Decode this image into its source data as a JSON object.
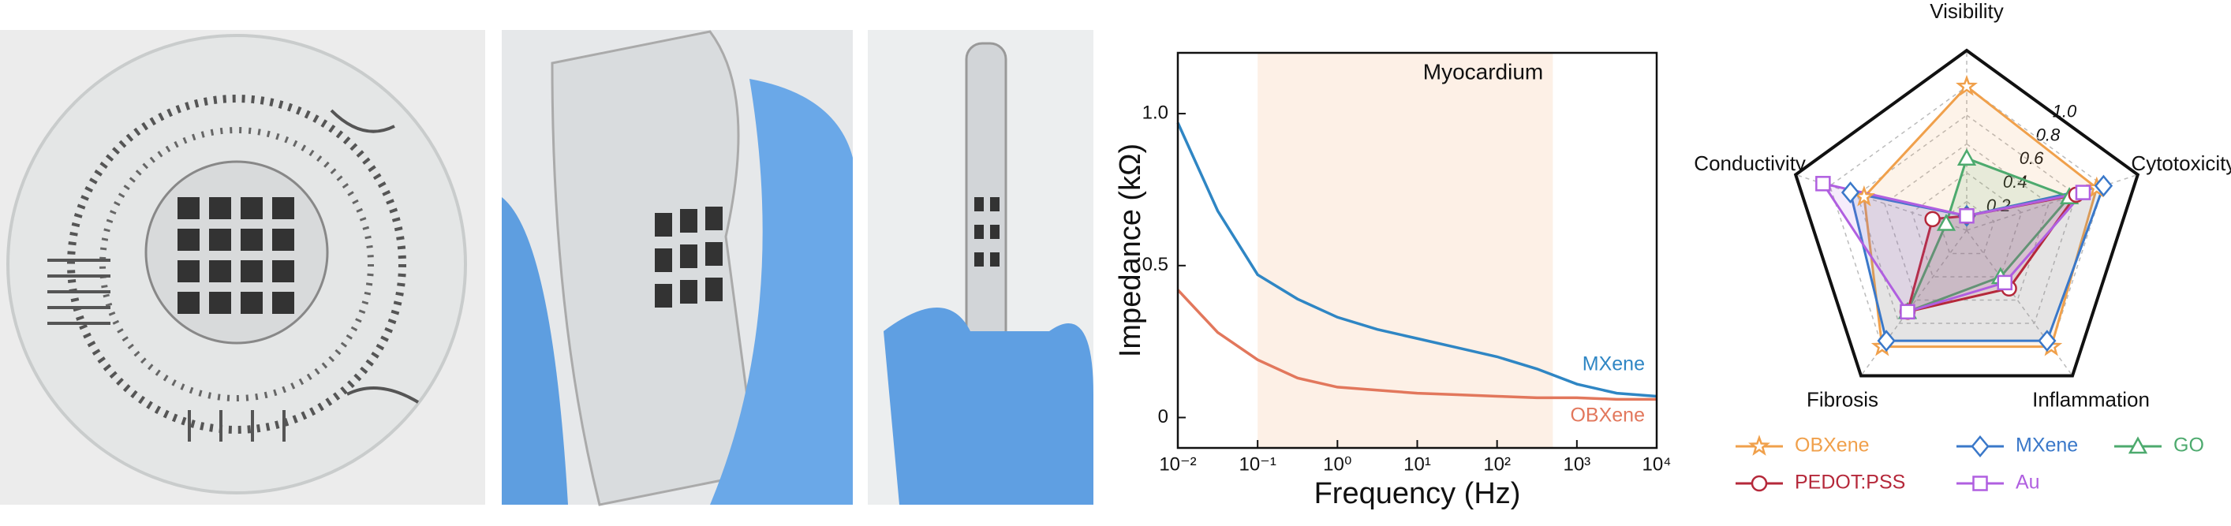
{
  "chart_data": [
    {
      "type": "line",
      "xscale": "log",
      "annotation": "Myocardium",
      "xlabel": "Frequency (Hz)",
      "ylabel": "Impedance (kΩ)",
      "shaded_range": [
        0.1,
        500
      ],
      "shade_color": "#fdf0e6",
      "x": [
        0.01,
        0.0316,
        0.1,
        0.316,
        1,
        3.16,
        10,
        31.6,
        100,
        316,
        1000,
        3162,
        10000
      ],
      "series": [
        {
          "name": "MXene",
          "color": "#2f86c4",
          "values": [
            0.97,
            0.68,
            0.47,
            0.39,
            0.33,
            0.29,
            0.26,
            0.23,
            0.2,
            0.16,
            0.11,
            0.08,
            0.07
          ]
        },
        {
          "name": "OBXene",
          "color": "#e2775c",
          "values": [
            0.42,
            0.28,
            0.19,
            0.13,
            0.1,
            0.09,
            0.08,
            0.075,
            0.07,
            0.065,
            0.065,
            0.06,
            0.06
          ]
        }
      ],
      "xlim": [
        0.01,
        10000
      ],
      "xticks": [
        {
          "value": 0.01,
          "label": "10⁻²"
        },
        {
          "value": 0.1,
          "label": "10⁻¹"
        },
        {
          "value": 1,
          "label": "10⁰"
        },
        {
          "value": 10,
          "label": "10¹"
        },
        {
          "value": 100,
          "label": "10²"
        },
        {
          "value": 1000,
          "label": "10³"
        },
        {
          "value": 10000,
          "label": "10⁴"
        }
      ],
      "ylim": [
        -0.1,
        1.2
      ],
      "yticks": [
        0,
        0.5,
        {
          "value": 1,
          "label": "1.0"
        }
      ]
    },
    {
      "type": "radar",
      "categories": [
        "Visibility",
        "Cytotoxicity",
        "Inflammation",
        "Fibrosis",
        "Conductivity"
      ],
      "rlim": [
        0,
        1.25
      ],
      "rticks": [
        0.2,
        0.4,
        0.6,
        0.8,
        {
          "value": 1,
          "label": "1.0"
        }
      ],
      "series": [
        {
          "name": "OBXene",
          "color": "#f0a04b",
          "marker": "star",
          "values": [
            1.0,
            0.95,
            1.0,
            1.0,
            0.75
          ]
        },
        {
          "name": "MXene",
          "color": "#3a78c9",
          "marker": "diamond",
          "values": [
            0.1,
            1.0,
            0.95,
            0.95,
            0.85
          ]
        },
        {
          "name": "GO",
          "color": "#4daa6e",
          "marker": "triangle",
          "values": [
            0.5,
            0.75,
            0.4,
            0.7,
            0.15
          ]
        },
        {
          "name": "PEDOT:PSS",
          "color": "#b5283a",
          "marker": "circle",
          "values": [
            0.1,
            0.8,
            0.5,
            0.7,
            0.25
          ]
        },
        {
          "name": "Au",
          "color": "#b05fe0",
          "marker": "square",
          "values": [
            0.1,
            0.85,
            0.45,
            0.7,
            1.05
          ]
        }
      ]
    }
  ]
}
